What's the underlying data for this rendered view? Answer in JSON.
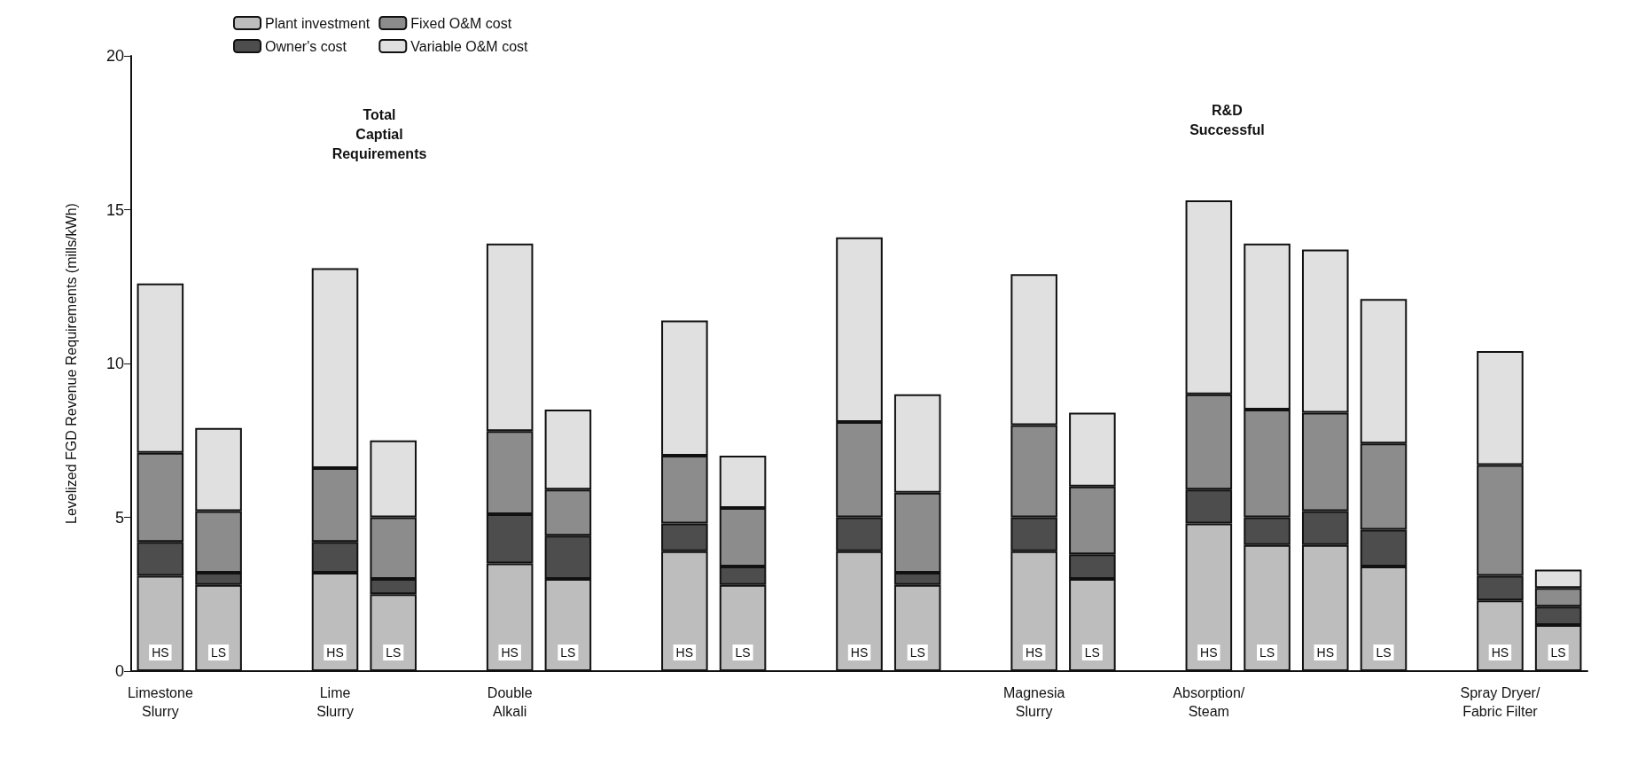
{
  "chart_data": {
    "type": "bar",
    "stacked": true,
    "ylabel": "Levelized FGD Revenue Requirements (mills/kWh)",
    "categories": [
      "Limestone\nSlurry",
      null,
      null,
      "Lime\nSlurry",
      null,
      null,
      "Double\nAlkali",
      null,
      null,
      null,
      null,
      null,
      null,
      null,
      null,
      "Magnesia\nSlurry",
      null,
      null,
      "Absorption/\nSteam",
      null,
      null,
      null,
      null,
      "Spray Dryer/\nFabric Filter",
      null
    ],
    "series": [
      {
        "name": "Plant investment",
        "color": "#bdbdbd",
        "values": [
          3.1,
          2.8,
          null,
          3.2,
          2.5,
          null,
          3.5,
          3.0,
          null,
          3.9,
          2.8,
          null,
          3.9,
          2.8,
          null,
          3.9,
          3.0,
          null,
          4.8,
          4.1,
          4.1,
          3.4,
          null,
          2.3,
          1.5
        ],
        "value_labels": [
          "HS",
          "LS",
          null,
          "HS",
          "LS",
          null,
          "HS",
          "LS",
          null,
          "HS",
          "LS",
          null,
          "HS",
          "LS",
          null,
          "HS",
          "LS",
          null,
          "HS",
          "LS",
          "HS",
          "LS",
          null,
          "HS",
          "LS"
        ]
      },
      {
        "name": "Owner's cost",
        "color": "#4d4d4d",
        "values": [
          1.1,
          0.4,
          null,
          1.0,
          0.5,
          null,
          1.6,
          1.4,
          null,
          0.9,
          0.6,
          null,
          1.1,
          0.4,
          null,
          1.1,
          0.8,
          null,
          1.1,
          0.9,
          1.1,
          1.2,
          null,
          0.8,
          0.6
        ]
      },
      {
        "name": "Fixed O&M cost",
        "color": "#8c8c8c",
        "values": [
          2.9,
          2.0,
          null,
          2.4,
          2.0,
          null,
          2.7,
          1.5,
          null,
          2.2,
          1.9,
          null,
          3.1,
          2.6,
          null,
          3.0,
          2.2,
          null,
          3.1,
          3.5,
          3.2,
          2.8,
          null,
          3.6,
          0.6
        ]
      },
      {
        "name": "Variable O&M cost",
        "color": "#e0e0e0",
        "values": [
          5.5,
          2.7,
          null,
          6.5,
          2.5,
          null,
          6.1,
          2.6,
          null,
          4.4,
          1.7,
          null,
          6.0,
          3.2,
          null,
          4.9,
          2.4,
          null,
          6.3,
          5.4,
          5.3,
          4.7,
          null,
          3.7,
          0.6
        ]
      }
    ],
    "ylim": [
      0,
      20
    ],
    "yticks": [
      0,
      5,
      10,
      15,
      20
    ],
    "grid": false,
    "legend": "top left",
    "annotations": [
      "Total\nCaptial\nRequirements",
      "R&D\nSuccessful"
    ]
  }
}
